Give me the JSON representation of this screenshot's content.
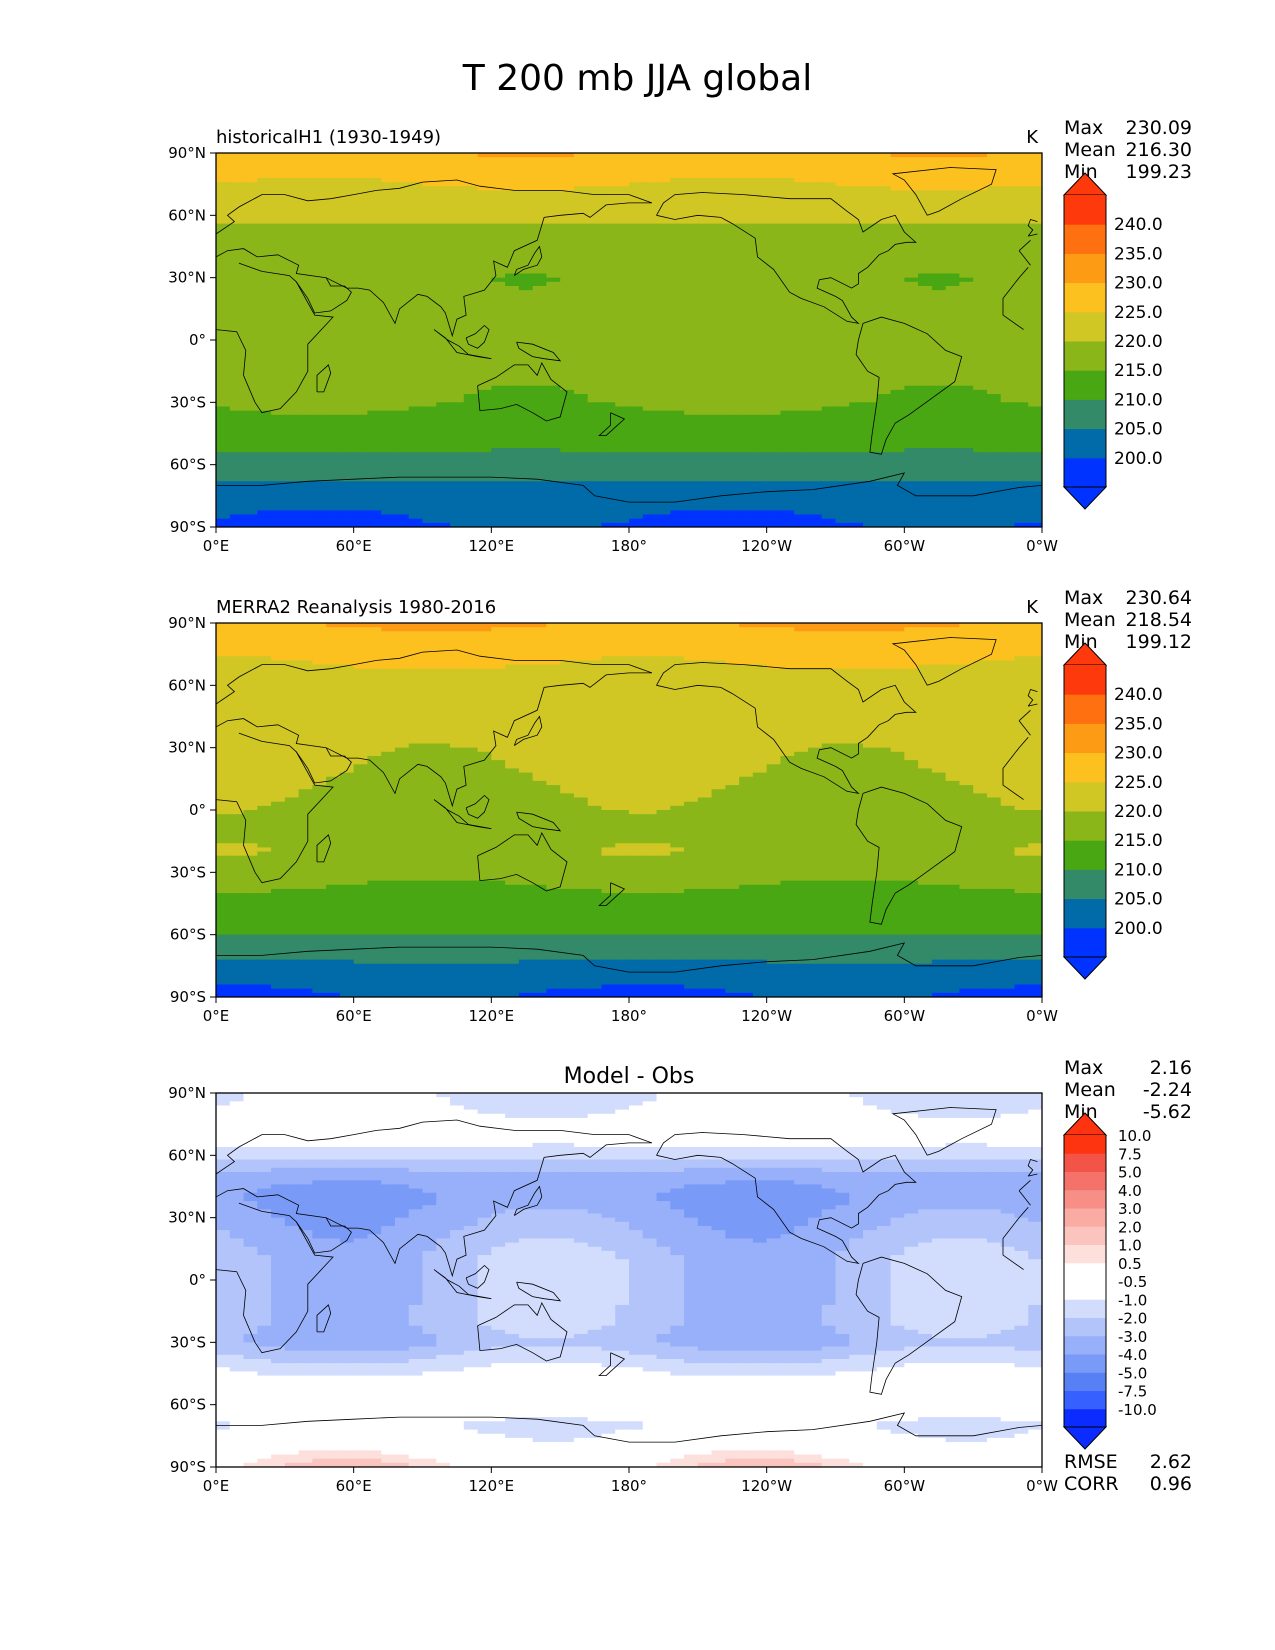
{
  "title": "T 200 mb JJA global",
  "x_ticks": [
    "0°E",
    "60°E",
    "120°E",
    "180°",
    "120°W",
    "60°W",
    "0°W"
  ],
  "y_ticks": [
    "90°N",
    "60°N",
    "30°N",
    "0°",
    "30°S",
    "60°S",
    "90°S"
  ],
  "stat_labels": {
    "max": "Max",
    "mean": "Mean",
    "min": "Min",
    "rmse": "RMSE",
    "corr": "CORR"
  },
  "colors": {
    "abs_levels": [
      "#0033ff",
      "#006ba8",
      "#338a68",
      "#48a712",
      "#8ab61a",
      "#d0c624",
      "#fcc11f",
      "#fd9c14",
      "#fe7010",
      "#fe3a0c"
    ],
    "diff_levels": [
      "#0c2bff",
      "#3660ff",
      "#5880f5",
      "#7a9af8",
      "#97b0f9",
      "#b3c4fb",
      "#d2dcfd",
      "#ffffff",
      "#ffffff",
      "#fddfdc",
      "#fbc4bf",
      "#f9aba4",
      "#f78f87",
      "#f5726a",
      "#f35447",
      "#fe3410"
    ]
  },
  "chart_data": [
    {
      "type": "heatmap",
      "panel": "historicalH1",
      "title": "historicalH1 (1930-1949)",
      "units": "K",
      "stats": {
        "max": "230.09",
        "mean": "216.30",
        "min": "199.23"
      },
      "xlim": [
        0,
        360
      ],
      "ylim": [
        -90,
        90
      ],
      "colorbar": {
        "levels": [
          200,
          205,
          210,
          215,
          220,
          225,
          230,
          235,
          240
        ],
        "tick_labels": [
          "200.0",
          "205.0",
          "210.0",
          "215.0",
          "220.0",
          "225.0",
          "230.0",
          "235.0",
          "240.0"
        ],
        "extend": "both"
      },
      "zonal_profile": {
        "lat": [
          90,
          80,
          70,
          60,
          50,
          40,
          30,
          20,
          10,
          0,
          -10,
          -20,
          -30,
          -40,
          -50,
          -60,
          -70,
          -80,
          -90
        ],
        "value": [
          229.5,
          226,
          224,
          221,
          218.5,
          216.5,
          216,
          216.5,
          217,
          217,
          217,
          216.5,
          215.5,
          213,
          211,
          208.5,
          204,
          201,
          199.5
        ]
      }
    },
    {
      "type": "heatmap",
      "panel": "MERRA2",
      "title": "MERRA2 Reanalysis 1980-2016",
      "units": "K",
      "stats": {
        "max": "230.64",
        "mean": "218.54",
        "min": "199.12"
      },
      "xlim": [
        0,
        360
      ],
      "ylim": [
        -90,
        90
      ],
      "colorbar": {
        "levels": [
          200,
          205,
          210,
          215,
          220,
          225,
          230,
          235,
          240
        ],
        "tick_labels": [
          "200.0",
          "205.0",
          "210.0",
          "215.0",
          "220.0",
          "225.0",
          "230.0",
          "235.0",
          "240.0"
        ],
        "extend": "both"
      },
      "zonal_profile": {
        "lat": [
          90,
          80,
          70,
          60,
          50,
          40,
          30,
          20,
          10,
          0,
          -10,
          -20,
          -30,
          -40,
          -50,
          -60,
          -70,
          -80,
          -90
        ],
        "value": [
          230.5,
          226.5,
          225,
          223.5,
          222,
          221.5,
          221,
          220.5,
          219.5,
          218.5,
          218,
          219,
          217,
          214,
          212,
          210,
          206,
          202,
          199.5
        ]
      }
    },
    {
      "type": "heatmap",
      "panel": "difference",
      "title": "Model - Obs",
      "units": "",
      "stats": {
        "max": "2.16",
        "mean": "-2.24",
        "min": "-5.62",
        "rmse": "2.62",
        "corr": "0.96"
      },
      "xlim": [
        0,
        360
      ],
      "ylim": [
        -90,
        90
      ],
      "colorbar": {
        "levels": [
          -10,
          -7.5,
          -5,
          -4,
          -3,
          -2,
          -1,
          -0.5,
          0.5,
          1,
          2,
          3,
          4,
          5,
          7.5,
          10
        ],
        "tick_labels": [
          "-10.0",
          "-7.5",
          "-5.0",
          "-4.0",
          "-3.0",
          "-2.0",
          "-1.0",
          "-0.5",
          "0.5",
          "1.0",
          "2.0",
          "3.0",
          "4.0",
          "5.0",
          "7.5",
          "10.0"
        ],
        "extend": "both"
      },
      "zonal_profile": {
        "lat": [
          90,
          80,
          70,
          60,
          50,
          40,
          30,
          20,
          10,
          0,
          -10,
          -20,
          -30,
          -40,
          -50,
          -60,
          -70,
          -80,
          -90
        ],
        "value": [
          -1.2,
          -0.6,
          -0.2,
          -1.5,
          -3.5,
          -4,
          -3.5,
          -3,
          -2.5,
          -2.5,
          -2.5,
          -2.5,
          -3,
          -1.5,
          -0.2,
          -0.4,
          -1,
          -0.3,
          0.6
        ]
      }
    }
  ]
}
